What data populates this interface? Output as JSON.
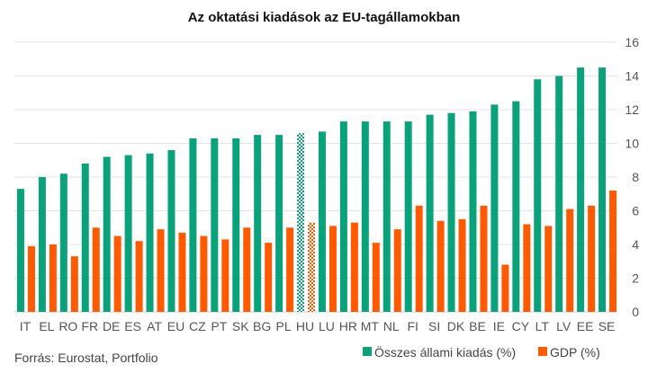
{
  "chart_data": {
    "type": "bar",
    "title": "Az oktatási kiadások az EU-tagállamokban",
    "categories": [
      "IT",
      "EL",
      "RO",
      "FR",
      "DE",
      "ES",
      "AT",
      "EU",
      "CZ",
      "PT",
      "SK",
      "BG",
      "PL",
      "HU",
      "LU",
      "HR",
      "MT",
      "NL",
      "FI",
      "SI",
      "DK",
      "BE",
      "IE",
      "CY",
      "LT",
      "LV",
      "EE",
      "SE"
    ],
    "series": [
      {
        "name": "Összes állami kiadás (%)",
        "color": "#0aa27a",
        "values": [
          7.3,
          8.0,
          8.2,
          8.8,
          9.2,
          9.3,
          9.4,
          9.6,
          10.3,
          10.3,
          10.3,
          10.5,
          10.5,
          10.6,
          10.7,
          11.3,
          11.3,
          11.3,
          11.3,
          11.7,
          11.8,
          11.9,
          12.3,
          12.5,
          13.8,
          14.0,
          14.5,
          14.5
        ]
      },
      {
        "name": "GDP (%)",
        "color": "#ff5a00",
        "values": [
          3.9,
          4.0,
          3.3,
          5.0,
          4.5,
          4.2,
          4.9,
          4.7,
          4.5,
          4.3,
          5.0,
          4.1,
          5.0,
          5.3,
          5.1,
          5.3,
          4.1,
          4.9,
          6.3,
          5.4,
          5.5,
          6.3,
          2.8,
          5.2,
          5.1,
          6.1,
          6.3,
          7.2
        ]
      }
    ],
    "highlight_category": "HU",
    "highlight_style": "hatched",
    "yticks": [
      0,
      2,
      4,
      6,
      8,
      10,
      12,
      14,
      16
    ],
    "ylim": [
      0,
      16
    ],
    "yaxis_side": "right",
    "grid": true,
    "legend_position": "bottom-right"
  },
  "source": "Forrás: Eurostat, Portfolio"
}
